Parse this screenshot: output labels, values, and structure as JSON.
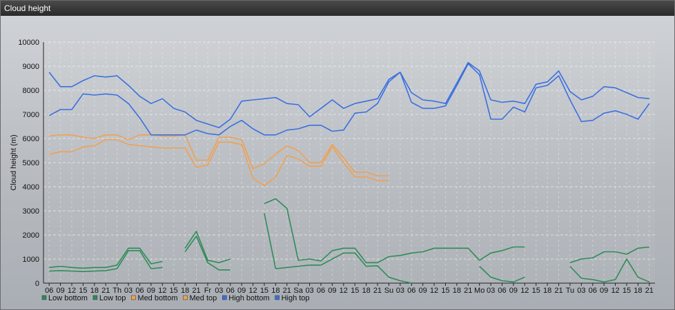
{
  "window": {
    "title": "Cloud height"
  },
  "colors": {
    "low_bottom": "#2e8b57",
    "low_top": "#2e8b57",
    "med_bottom": "#f0a050",
    "med_top": "#f0a050",
    "high_bottom": "#3a6fe0",
    "high_top": "#3a6fe0"
  },
  "chart_data": {
    "type": "line",
    "ylabel": "Cloud height (m)",
    "xlabel": "",
    "ylim": [
      0,
      10000
    ],
    "yticks": [
      0,
      1000,
      2000,
      3000,
      4000,
      5000,
      6000,
      7000,
      8000,
      9000,
      10000
    ],
    "grid": true,
    "legend_position": "bottom-left",
    "categories": [
      "06",
      "09",
      "12",
      "15",
      "18",
      "21",
      "Th",
      "03",
      "06",
      "09",
      "12",
      "15",
      "18",
      "21",
      "Fr",
      "03",
      "06",
      "09",
      "12",
      "15",
      "18",
      "21",
      "Sa",
      "03",
      "06",
      "09",
      "12",
      "15",
      "18",
      "21",
      "Su",
      "03",
      "06",
      "09",
      "12",
      "15",
      "18",
      "21",
      "Mo",
      "03",
      "06",
      "09",
      "12",
      "15",
      "18",
      "21",
      "Tu",
      "03",
      "06",
      "09",
      "12",
      "15",
      "18",
      "21"
    ],
    "series": [
      {
        "name": "Low bottom",
        "color_key": "low_bottom",
        "values": [
          500,
          520,
          500,
          480,
          500,
          520,
          600,
          1350,
          1350,
          600,
          650,
          null,
          1300,
          1950,
          850,
          550,
          550,
          null,
          null,
          2900,
          600,
          650,
          700,
          750,
          750,
          1000,
          1250,
          1250,
          700,
          720,
          250,
          100,
          0,
          null,
          null,
          null,
          null,
          null,
          700,
          250,
          100,
          50,
          250,
          null,
          null,
          null,
          700,
          200,
          150,
          50,
          150,
          1000,
          250,
          50
        ]
      },
      {
        "name": "Low top",
        "color_key": "low_top",
        "values": [
          650,
          700,
          650,
          620,
          650,
          650,
          750,
          1450,
          1450,
          800,
          900,
          null,
          1450,
          2150,
          950,
          850,
          1000,
          null,
          null,
          3300,
          3500,
          3100,
          950,
          1000,
          920,
          1350,
          1450,
          1450,
          850,
          850,
          1100,
          1150,
          1250,
          1300,
          1450,
          1450,
          1450,
          1450,
          950,
          1250,
          1350,
          1500,
          1500,
          null,
          null,
          null,
          850,
          1000,
          1050,
          1300,
          1300,
          1200,
          1450,
          1500
        ]
      },
      {
        "name": "Med bottom",
        "color_key": "med_bottom",
        "values": [
          5350,
          5450,
          5450,
          5650,
          5700,
          5950,
          5950,
          5750,
          5700,
          5650,
          5600,
          5600,
          5600,
          4800,
          4900,
          5850,
          5850,
          5750,
          4350,
          4050,
          4400,
          5300,
          5150,
          4850,
          4850,
          5650,
          5000,
          4400,
          4400,
          4250,
          4250,
          null,
          null,
          null,
          null,
          null,
          null,
          null,
          null,
          null,
          null,
          null,
          null,
          null,
          null,
          null,
          null,
          null,
          null,
          null,
          null,
          null,
          null,
          null
        ]
      },
      {
        "name": "Med top",
        "color_key": "med_top",
        "values": [
          6100,
          6150,
          6150,
          6050,
          6000,
          6150,
          6150,
          5950,
          6150,
          6150,
          6100,
          6100,
          6150,
          5100,
          5100,
          6050,
          6050,
          5950,
          4750,
          4950,
          5350,
          5700,
          5500,
          5000,
          5000,
          5750,
          5200,
          4600,
          4600,
          4450,
          4450,
          null,
          null,
          null,
          null,
          null,
          null,
          null,
          null,
          null,
          null,
          null,
          null,
          null,
          null,
          null,
          null,
          null,
          null,
          null,
          null,
          null,
          null,
          null
        ]
      },
      {
        "name": "High bottom",
        "color_key": "high_bottom",
        "values": [
          6950,
          7200,
          7200,
          7850,
          7800,
          7850,
          7800,
          7450,
          6850,
          6150,
          6150,
          6150,
          6150,
          6350,
          6200,
          6150,
          6500,
          6750,
          6400,
          6150,
          6150,
          6350,
          6400,
          6550,
          6550,
          6300,
          6350,
          7050,
          7100,
          7450,
          8350,
          8750,
          7500,
          7250,
          7250,
          7350,
          8200,
          9100,
          8650,
          6800,
          6800,
          7300,
          7100,
          8100,
          8200,
          8600,
          7600,
          6700,
          6750,
          7050,
          7150,
          7000,
          6800,
          7450
        ]
      },
      {
        "name": "High top",
        "color_key": "high_top",
        "values": [
          8750,
          8150,
          8150,
          8400,
          8600,
          8550,
          8600,
          8200,
          7750,
          7450,
          7650,
          7250,
          7100,
          6750,
          6600,
          6450,
          6800,
          7550,
          7600,
          7650,
          7700,
          7450,
          7400,
          6900,
          7250,
          7600,
          7250,
          7450,
          7550,
          7650,
          8450,
          8750,
          7900,
          7600,
          7550,
          7450,
          8300,
          9150,
          8800,
          7600,
          7500,
          7550,
          7450,
          8250,
          8350,
          8800,
          7950,
          7600,
          7750,
          8150,
          8100,
          7900,
          7700,
          7650
        ]
      }
    ]
  }
}
